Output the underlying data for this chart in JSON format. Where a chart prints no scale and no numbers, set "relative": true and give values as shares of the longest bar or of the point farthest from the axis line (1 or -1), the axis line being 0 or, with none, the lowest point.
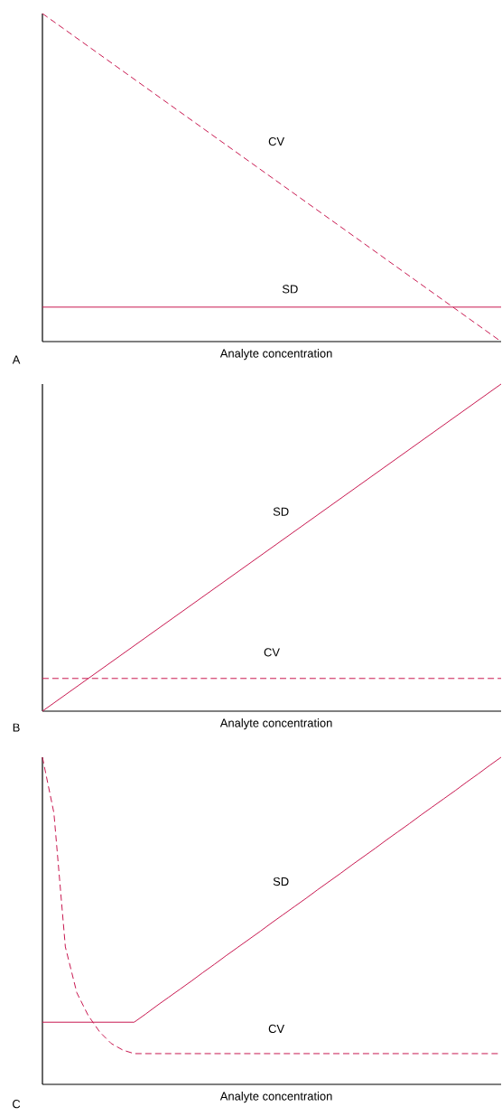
{
  "chart_data": [
    {
      "type": "line",
      "relative": true,
      "xlabel": "Analyte concentration",
      "annotations": [
        "A"
      ],
      "categories": [
        null,
        null
      ],
      "series": [
        {
          "name": "CV",
          "color": "#c8174f",
          "line_style": "dashed",
          "values": [
            1,
            0
          ]
        },
        {
          "name": "SD",
          "color": "#c8174f",
          "line_style": "solid",
          "values": [
            0.105,
            0.105
          ]
        }
      ]
    },
    {
      "type": "line",
      "relative": true,
      "xlabel": "Analyte concentration",
      "annotations": [
        "B"
      ],
      "categories": [
        null,
        null
      ],
      "series": [
        {
          "name": "SD",
          "color": "#c8174f",
          "line_style": "solid",
          "values": [
            0,
            1
          ]
        },
        {
          "name": "CV",
          "color": "#c8174f",
          "line_style": "dashed",
          "values": [
            0.1,
            0.1
          ]
        }
      ]
    },
    {
      "type": "line",
      "relative": true,
      "xlabel": "Analyte concentration",
      "annotations": [
        "C"
      ],
      "categories": [
        null,
        null,
        null,
        null,
        null,
        null,
        null,
        null,
        null,
        null,
        null,
        null,
        null,
        null,
        null,
        null,
        null,
        null,
        null,
        null,
        null,
        null,
        null,
        null,
        null,
        null,
        null,
        null,
        null,
        null,
        null,
        null,
        null,
        null,
        null,
        null,
        null,
        null,
        null,
        null,
        null
      ],
      "series": [
        {
          "name": "SD",
          "color": "#c8174f",
          "line_style": "solid",
          "values": [
            0.19,
            0.19,
            0.19,
            0.19,
            0.19,
            0.19,
            0.19,
            0.19,
            0.19,
            0.215,
            0.241,
            0.266,
            0.291,
            0.316,
            0.342,
            0.367,
            0.393,
            0.418,
            0.443,
            0.468,
            0.494,
            0.519,
            0.544,
            0.569,
            0.595,
            0.62,
            0.645,
            0.671,
            0.696,
            0.721,
            0.747,
            0.772,
            0.797,
            0.823,
            0.848,
            0.873,
            0.898,
            0.924,
            0.949,
            0.975,
            1
          ]
        },
        {
          "name": "CV",
          "color": "#c8174f",
          "line_style": "dashed",
          "values": [
            1,
            0.83,
            0.42,
            0.28,
            0.21,
            0.16,
            0.125,
            0.105,
            0.094,
            0.094,
            0.094,
            0.094,
            0.094,
            0.094,
            0.094,
            0.094,
            0.094,
            0.094,
            0.094,
            0.094,
            0.094,
            0.094,
            0.094,
            0.094,
            0.094,
            0.094,
            0.094,
            0.094,
            0.094,
            0.094,
            0.094,
            0.094,
            0.094,
            0.094,
            0.094,
            0.094,
            0.094,
            0.094,
            0.094,
            0.094,
            0.094
          ]
        }
      ]
    }
  ]
}
